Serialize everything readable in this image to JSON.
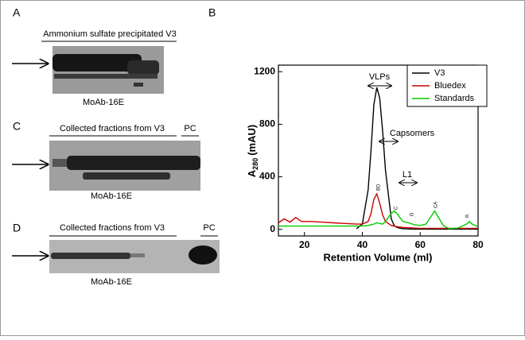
{
  "panel_labels": [
    "A",
    "B",
    "C",
    "D"
  ],
  "blots": [
    {
      "caption": "Ammonium sulfate precipitated V3",
      "antibody": "MoAb-16E"
    },
    {
      "caption": "Collected fractions from V3",
      "extra_label": "PC",
      "antibody": "MoAb-16E"
    },
    {
      "caption": "Collected fractions from V3",
      "extra_label": "PC",
      "antibody": "MoAb-16E"
    }
  ],
  "chart_data": {
    "type": "line",
    "xlabel": "Retention Volume (ml)",
    "ylabel": {
      "main": "A",
      "sub": "280",
      "unit": "(mAU)"
    },
    "xlim": [
      11,
      80
    ],
    "xticks": [
      20,
      40,
      60,
      80
    ],
    "ylim": [
      -50,
      1250
    ],
    "yticks": [
      0,
      400,
      800,
      1200
    ],
    "legend": "upper right",
    "x": [
      11,
      13,
      15,
      17,
      19,
      22,
      26,
      30,
      34,
      38,
      40,
      42,
      43,
      44,
      45,
      46,
      47,
      48,
      50,
      51,
      52,
      54,
      56,
      58,
      60,
      62,
      65,
      68,
      70,
      73,
      76,
      77,
      78,
      80
    ],
    "series": [
      {
        "name": "V3",
        "color": "#000000",
        "values": [
          null,
          null,
          null,
          null,
          null,
          null,
          null,
          null,
          null,
          5,
          40,
          300,
          600,
          950,
          1080,
          1000,
          750,
          450,
          80,
          30,
          15,
          5,
          3,
          2,
          2,
          2,
          2,
          2,
          2,
          2,
          2,
          2,
          2,
          2
        ]
      },
      {
        "name": "Bluedex",
        "color": "#cc0000",
        "values": [
          50,
          80,
          55,
          90,
          60,
          60,
          55,
          50,
          45,
          40,
          40,
          60,
          120,
          230,
          270,
          200,
          110,
          60,
          30,
          25,
          20,
          15,
          12,
          10,
          8,
          8,
          8,
          8,
          8,
          8,
          8,
          8,
          8,
          8
        ]
      },
      {
        "name": "Standards",
        "color": "#00cc00",
        "values": [
          25,
          25,
          25,
          25,
          25,
          25,
          25,
          25,
          25,
          25,
          25,
          30,
          35,
          40,
          50,
          45,
          40,
          60,
          120,
          140,
          120,
          60,
          50,
          35,
          30,
          40,
          140,
          30,
          5,
          10,
          40,
          60,
          40,
          20
        ]
      }
    ],
    "annotations": [
      "VLPs",
      "Capsomers",
      "L1"
    ],
    "peak_labels": [
      "BD",
      "C",
      "O",
      "CA",
      "R"
    ]
  }
}
